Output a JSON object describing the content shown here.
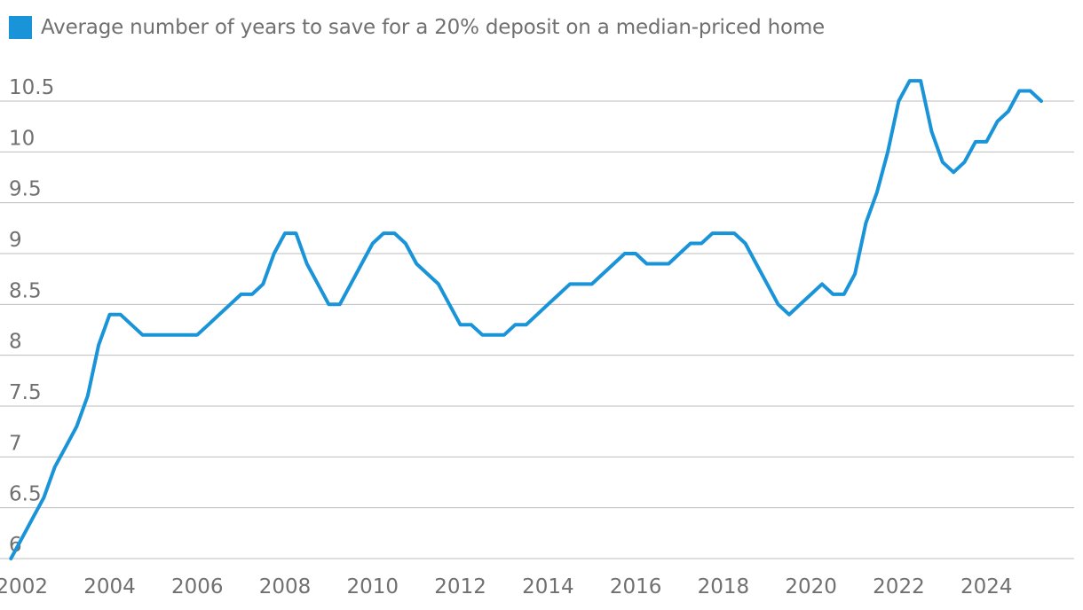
{
  "legend": {
    "label": "Average number of years to save for a 20% deposit on a median-priced home"
  },
  "colors": {
    "line": "#1a94d8",
    "grid": "#bdbdbd",
    "text": "#707070"
  },
  "chart_data": {
    "type": "line",
    "title": "",
    "xlabel": "",
    "ylabel": "",
    "legend_position": "top-left",
    "grid": "horizontal",
    "xlim": [
      2001.5,
      2026.0
    ],
    "ylim": [
      6,
      10.5
    ],
    "x_ticks": [
      2002,
      2004,
      2006,
      2008,
      2010,
      2012,
      2014,
      2016,
      2018,
      2020,
      2022,
      2024
    ],
    "x_tick_labels": [
      "2002",
      "2004",
      "2006",
      "2008",
      "2010",
      "2012",
      "2014",
      "2016",
      "2018",
      "2020",
      "2022",
      "2024"
    ],
    "y_ticks": [
      6,
      6.5,
      7,
      7.5,
      8,
      8.5,
      9,
      9.5,
      10,
      10.5
    ],
    "y_tick_labels": [
      "6",
      "6.5",
      "7",
      "7.5",
      "8",
      "8.5",
      "9",
      "9.5",
      "10",
      "10.5"
    ],
    "series": [
      {
        "name": "Average number of years to save for a 20% deposit on a median-priced home",
        "x": [
          2001.75,
          2002.0,
          2002.25,
          2002.5,
          2002.75,
          2003.0,
          2003.25,
          2003.5,
          2003.75,
          2004.0,
          2004.25,
          2004.5,
          2004.75,
          2005.0,
          2005.25,
          2005.5,
          2005.75,
          2006.0,
          2006.25,
          2006.5,
          2006.75,
          2007.0,
          2007.25,
          2007.5,
          2007.75,
          2008.0,
          2008.25,
          2008.5,
          2008.75,
          2009.0,
          2009.25,
          2009.5,
          2009.75,
          2010.0,
          2010.25,
          2010.5,
          2010.75,
          2011.0,
          2011.25,
          2011.5,
          2011.75,
          2012.0,
          2012.25,
          2012.5,
          2012.75,
          2013.0,
          2013.25,
          2013.5,
          2013.75,
          2014.0,
          2014.25,
          2014.5,
          2014.75,
          2015.0,
          2015.25,
          2015.5,
          2015.75,
          2016.0,
          2016.25,
          2016.5,
          2016.75,
          2017.0,
          2017.25,
          2017.5,
          2017.75,
          2018.0,
          2018.25,
          2018.5,
          2018.75,
          2019.0,
          2019.25,
          2019.5,
          2019.75,
          2020.0,
          2020.25,
          2020.5,
          2020.75,
          2021.0,
          2021.25,
          2021.5,
          2021.75,
          2022.0,
          2022.25,
          2022.5,
          2022.75,
          2023.0,
          2023.25,
          2023.5,
          2023.75,
          2024.0,
          2024.25,
          2024.5,
          2024.75,
          2025.0,
          2025.25
        ],
        "values": [
          6.0,
          6.2,
          6.4,
          6.6,
          6.9,
          7.1,
          7.3,
          7.6,
          8.1,
          8.4,
          8.4,
          8.3,
          8.2,
          8.2,
          8.2,
          8.2,
          8.2,
          8.2,
          8.3,
          8.4,
          8.5,
          8.6,
          8.6,
          8.7,
          9.0,
          9.2,
          9.2,
          8.9,
          8.7,
          8.5,
          8.5,
          8.7,
          8.9,
          9.1,
          9.2,
          9.2,
          9.1,
          8.9,
          8.8,
          8.7,
          8.5,
          8.3,
          8.3,
          8.2,
          8.2,
          8.2,
          8.3,
          8.3,
          8.4,
          8.5,
          8.6,
          8.7,
          8.7,
          8.7,
          8.8,
          8.9,
          9.0,
          9.0,
          8.9,
          8.9,
          8.9,
          9.0,
          9.1,
          9.1,
          9.2,
          9.2,
          9.2,
          9.1,
          8.9,
          8.7,
          8.5,
          8.4,
          8.5,
          8.6,
          8.7,
          8.6,
          8.6,
          8.8,
          9.3,
          9.6,
          10.0,
          10.5,
          10.7,
          10.7,
          10.2,
          9.9,
          9.8,
          9.9,
          10.1,
          10.1,
          10.3,
          10.4,
          10.6,
          10.6,
          10.5
        ]
      }
    ]
  }
}
